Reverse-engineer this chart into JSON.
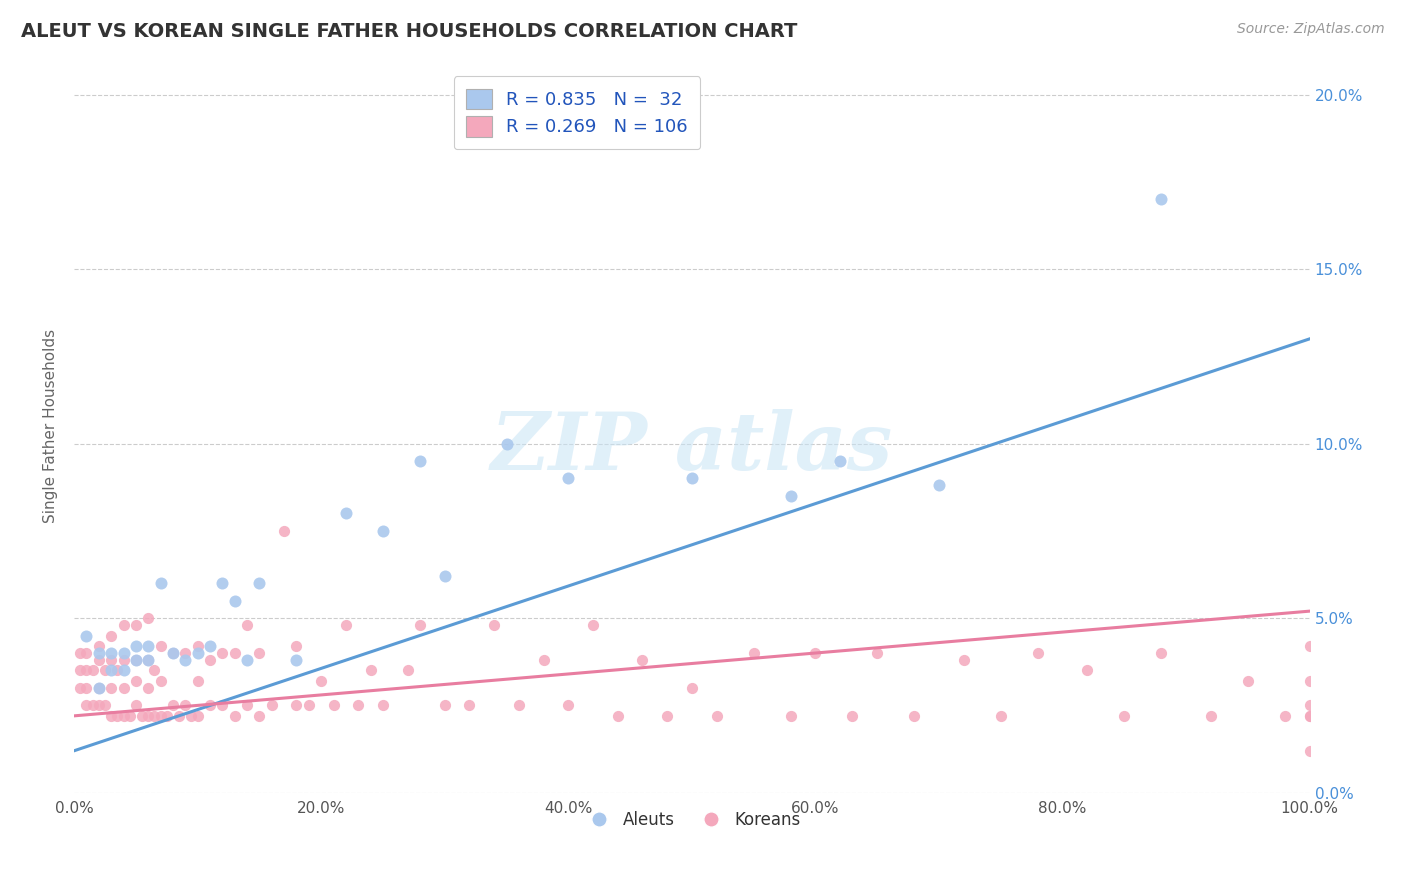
{
  "title": "ALEUT VS KOREAN SINGLE FATHER HOUSEHOLDS CORRELATION CHART",
  "source": "Source: ZipAtlas.com",
  "ylabel": "Single Father Households",
  "xlim": [
    0,
    1.0
  ],
  "ylim": [
    0,
    0.21
  ],
  "aleut_R": 0.835,
  "aleut_N": 32,
  "korean_R": 0.269,
  "korean_N": 106,
  "aleut_color": "#aac8ed",
  "aleut_line_color": "#5b9bd5",
  "korean_color": "#f4a8bc",
  "korean_line_color": "#e87da0",
  "background_color": "#ffffff",
  "grid_color": "#cccccc",
  "aleut_line_x0": 0.0,
  "aleut_line_y0": 0.012,
  "aleut_line_x1": 1.0,
  "aleut_line_y1": 0.13,
  "korean_line_x0": 0.0,
  "korean_line_y0": 0.022,
  "korean_line_x1": 1.0,
  "korean_line_y1": 0.052,
  "aleut_scatter_x": [
    0.01,
    0.02,
    0.02,
    0.03,
    0.03,
    0.04,
    0.04,
    0.05,
    0.05,
    0.06,
    0.06,
    0.07,
    0.08,
    0.09,
    0.1,
    0.11,
    0.12,
    0.13,
    0.14,
    0.15,
    0.18,
    0.22,
    0.25,
    0.28,
    0.3,
    0.35,
    0.4,
    0.5,
    0.58,
    0.62,
    0.7,
    0.88
  ],
  "aleut_scatter_y": [
    0.045,
    0.03,
    0.04,
    0.035,
    0.04,
    0.035,
    0.04,
    0.038,
    0.042,
    0.038,
    0.042,
    0.06,
    0.04,
    0.038,
    0.04,
    0.042,
    0.06,
    0.055,
    0.038,
    0.06,
    0.038,
    0.08,
    0.075,
    0.095,
    0.062,
    0.1,
    0.09,
    0.09,
    0.085,
    0.095,
    0.088,
    0.17
  ],
  "korean_scatter_x": [
    0.005,
    0.005,
    0.005,
    0.01,
    0.01,
    0.01,
    0.01,
    0.015,
    0.015,
    0.02,
    0.02,
    0.02,
    0.02,
    0.025,
    0.025,
    0.03,
    0.03,
    0.03,
    0.03,
    0.035,
    0.035,
    0.04,
    0.04,
    0.04,
    0.04,
    0.045,
    0.05,
    0.05,
    0.05,
    0.05,
    0.055,
    0.06,
    0.06,
    0.06,
    0.06,
    0.065,
    0.065,
    0.07,
    0.07,
    0.07,
    0.075,
    0.08,
    0.08,
    0.085,
    0.09,
    0.09,
    0.095,
    0.1,
    0.1,
    0.1,
    0.11,
    0.11,
    0.12,
    0.12,
    0.13,
    0.13,
    0.14,
    0.14,
    0.15,
    0.15,
    0.16,
    0.17,
    0.18,
    0.18,
    0.19,
    0.2,
    0.21,
    0.22,
    0.23,
    0.24,
    0.25,
    0.27,
    0.28,
    0.3,
    0.32,
    0.34,
    0.36,
    0.38,
    0.4,
    0.42,
    0.44,
    0.46,
    0.48,
    0.5,
    0.52,
    0.55,
    0.58,
    0.6,
    0.63,
    0.65,
    0.68,
    0.72,
    0.75,
    0.78,
    0.82,
    0.85,
    0.88,
    0.92,
    0.95,
    0.98,
    1.0,
    1.0,
    1.0,
    1.0,
    1.0,
    1.0
  ],
  "korean_scatter_y": [
    0.03,
    0.035,
    0.04,
    0.025,
    0.03,
    0.035,
    0.04,
    0.025,
    0.035,
    0.025,
    0.03,
    0.038,
    0.042,
    0.025,
    0.035,
    0.022,
    0.03,
    0.038,
    0.045,
    0.022,
    0.035,
    0.022,
    0.03,
    0.038,
    0.048,
    0.022,
    0.025,
    0.032,
    0.038,
    0.048,
    0.022,
    0.022,
    0.03,
    0.038,
    0.05,
    0.022,
    0.035,
    0.022,
    0.032,
    0.042,
    0.022,
    0.025,
    0.04,
    0.022,
    0.025,
    0.04,
    0.022,
    0.022,
    0.032,
    0.042,
    0.025,
    0.038,
    0.025,
    0.04,
    0.022,
    0.04,
    0.025,
    0.048,
    0.022,
    0.04,
    0.025,
    0.075,
    0.025,
    0.042,
    0.025,
    0.032,
    0.025,
    0.048,
    0.025,
    0.035,
    0.025,
    0.035,
    0.048,
    0.025,
    0.025,
    0.048,
    0.025,
    0.038,
    0.025,
    0.048,
    0.022,
    0.038,
    0.022,
    0.03,
    0.022,
    0.04,
    0.022,
    0.04,
    0.022,
    0.04,
    0.022,
    0.038,
    0.022,
    0.04,
    0.035,
    0.022,
    0.04,
    0.022,
    0.032,
    0.022,
    0.022,
    0.032,
    0.042,
    0.025,
    0.012,
    0.022
  ]
}
